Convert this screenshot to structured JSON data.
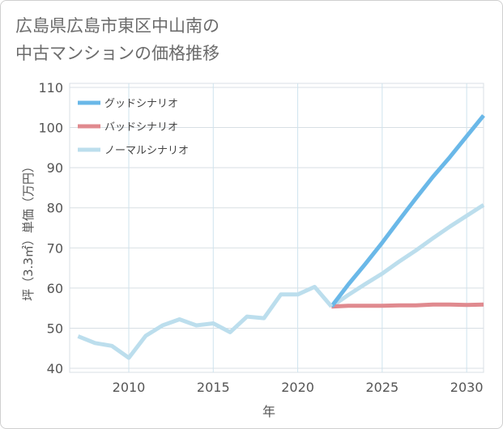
{
  "title_lines": [
    "広島県広島市東区中山南の",
    "中古マンションの価格推移"
  ],
  "chart_data": {
    "type": "line",
    "title": "広島県広島市東区中山南の中古マンションの価格推移",
    "xlabel": "年",
    "ylabel": "坪（3.3㎡）単価（万円）",
    "xlim": [
      2006.5,
      2031
    ],
    "ylim": [
      39,
      111
    ],
    "xticks": [
      2010,
      2015,
      2020,
      2025,
      2030
    ],
    "yticks": [
      40,
      50,
      60,
      70,
      80,
      90,
      100,
      110
    ],
    "grid": true,
    "legend_position": "top-left",
    "historical": {
      "x": [
        2007,
        2008,
        2009,
        2010,
        2011,
        2012,
        2013,
        2014,
        2015,
        2016,
        2017,
        2018,
        2019,
        2020,
        2021,
        2022
      ],
      "y": [
        48.0,
        46.3,
        45.6,
        42.6,
        48.1,
        50.7,
        52.2,
        50.7,
        51.2,
        49.0,
        52.9,
        52.5,
        58.4,
        58.4,
        60.3,
        55.4
      ]
    },
    "series": [
      {
        "name": "グッドシナリオ",
        "color": "#6ab8e8",
        "x": [
          2022,
          2023,
          2024,
          2025,
          2026,
          2027,
          2028,
          2029,
          2030,
          2031
        ],
        "y": [
          55.4,
          60.9,
          66.0,
          71.3,
          76.9,
          82.4,
          87.7,
          92.6,
          97.8,
          103.0
        ]
      },
      {
        "name": "バッドシナリオ",
        "color": "#e08a8f",
        "x": [
          2022,
          2023,
          2024,
          2025,
          2026,
          2027,
          2028,
          2029,
          2030,
          2031
        ],
        "y": [
          55.4,
          55.6,
          55.6,
          55.6,
          55.7,
          55.7,
          55.9,
          55.9,
          55.8,
          55.9
        ]
      },
      {
        "name": "ノーマルシナリオ",
        "color": "#bcdeed",
        "x": [
          2022,
          2023,
          2024,
          2025,
          2026,
          2027,
          2028,
          2029,
          2030,
          2031
        ],
        "y": [
          55.4,
          58.3,
          61.0,
          63.6,
          66.6,
          69.4,
          72.4,
          75.3,
          78.0,
          80.7
        ]
      }
    ]
  }
}
